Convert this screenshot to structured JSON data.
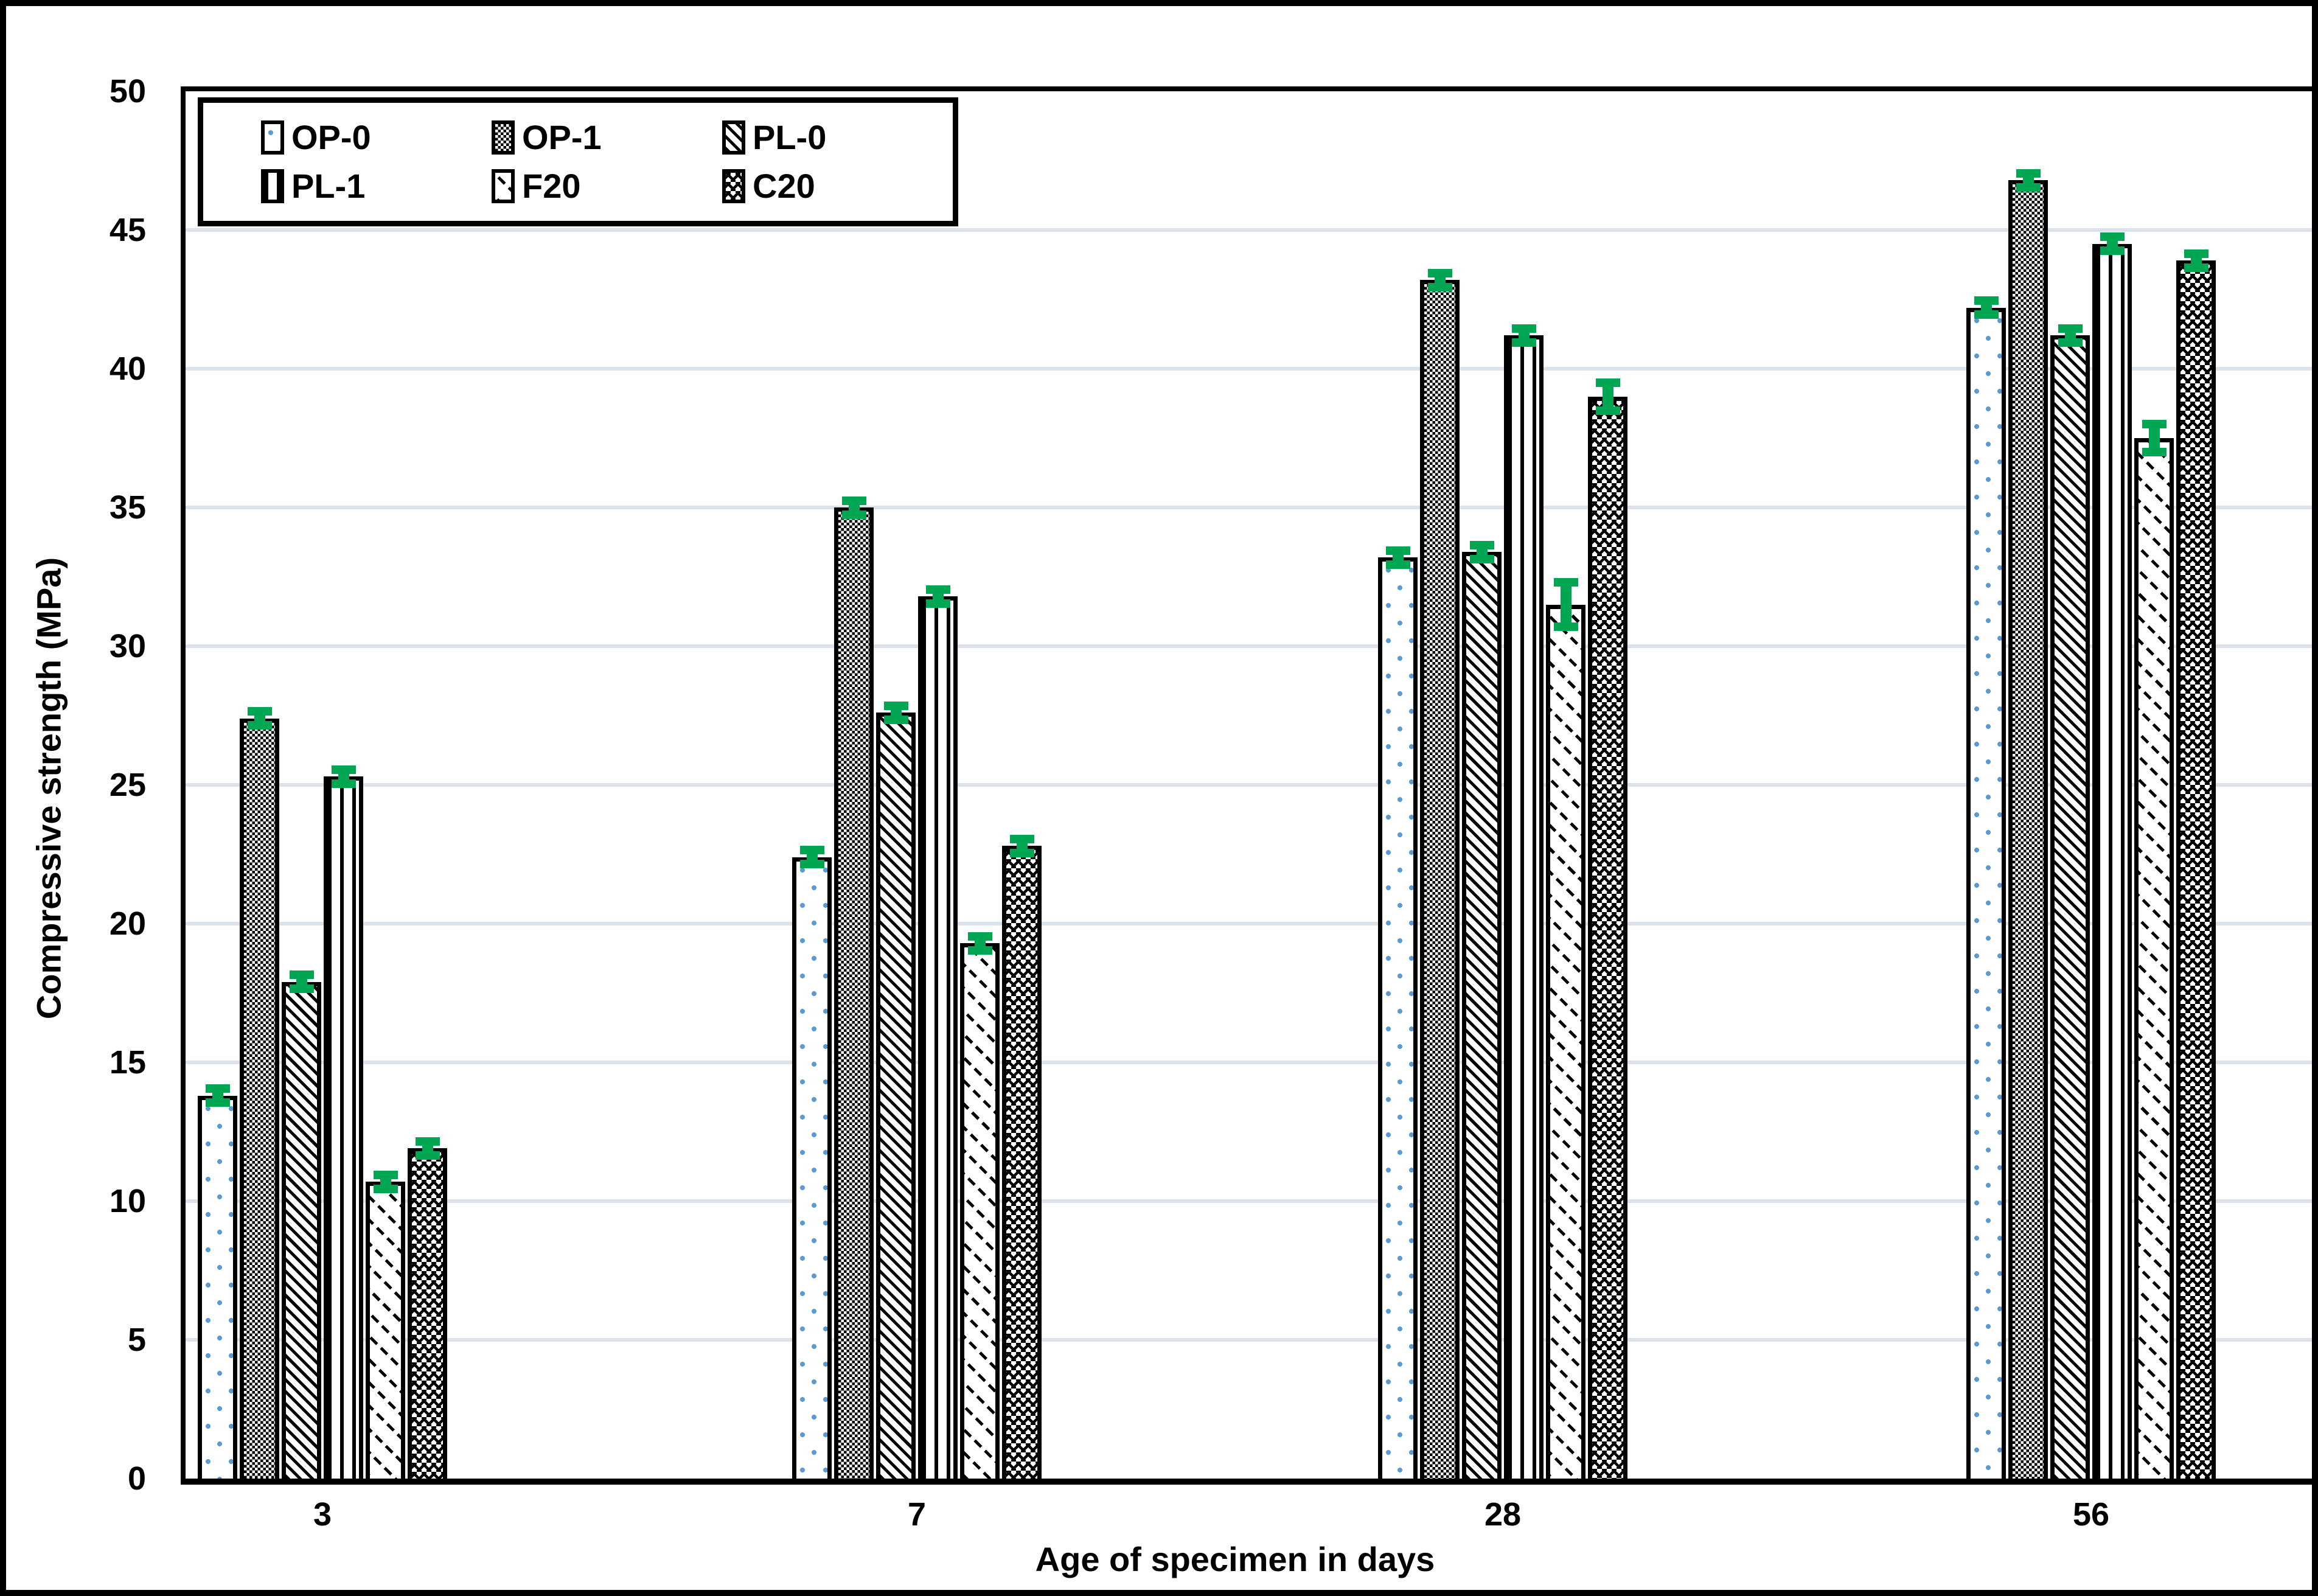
{
  "chart_data": {
    "type": "bar",
    "title": "",
    "xlabel": "Age of specimen in days",
    "ylabel": "Compressive strength (MPa)",
    "ylim": [
      0,
      50
    ],
    "ytick_step": 5,
    "grid": "horizontal",
    "legend_position": "top-left-inside",
    "categories": [
      "3",
      "7",
      "28",
      "56"
    ],
    "series": [
      {
        "name": "OP-0",
        "pattern": "dots",
        "values": [
          13.8,
          22.4,
          33.2,
          42.2
        ],
        "err": [
          0.25,
          0.25,
          0.25,
          0.25
        ]
      },
      {
        "name": "OP-1",
        "pattern": "checker",
        "values": [
          27.4,
          35.0,
          43.2,
          46.8
        ],
        "err": [
          0.25,
          0.25,
          0.25,
          0.25
        ]
      },
      {
        "name": "PL-0",
        "pattern": "diag",
        "values": [
          17.9,
          27.6,
          33.4,
          41.2
        ],
        "err": [
          0.25,
          0.25,
          0.25,
          0.25
        ]
      },
      {
        "name": "PL-1",
        "pattern": "vert",
        "values": [
          25.3,
          31.8,
          41.2,
          44.5
        ],
        "err": [
          0.25,
          0.25,
          0.25,
          0.25
        ]
      },
      {
        "name": "F20",
        "pattern": "dash",
        "values": [
          10.7,
          19.3,
          31.5,
          37.5
        ],
        "err": [
          0.25,
          0.25,
          0.8,
          0.5
        ]
      },
      {
        "name": "C20",
        "pattern": "chevron",
        "values": [
          11.9,
          22.8,
          39.0,
          43.9
        ],
        "err": [
          0.25,
          0.25,
          0.5,
          0.25
        ]
      }
    ],
    "colors": {
      "error_marker": "#00a651",
      "dot_fill": "#5b9bd5",
      "gridline": "#dbe2eb",
      "bar_border": "#000000"
    }
  }
}
